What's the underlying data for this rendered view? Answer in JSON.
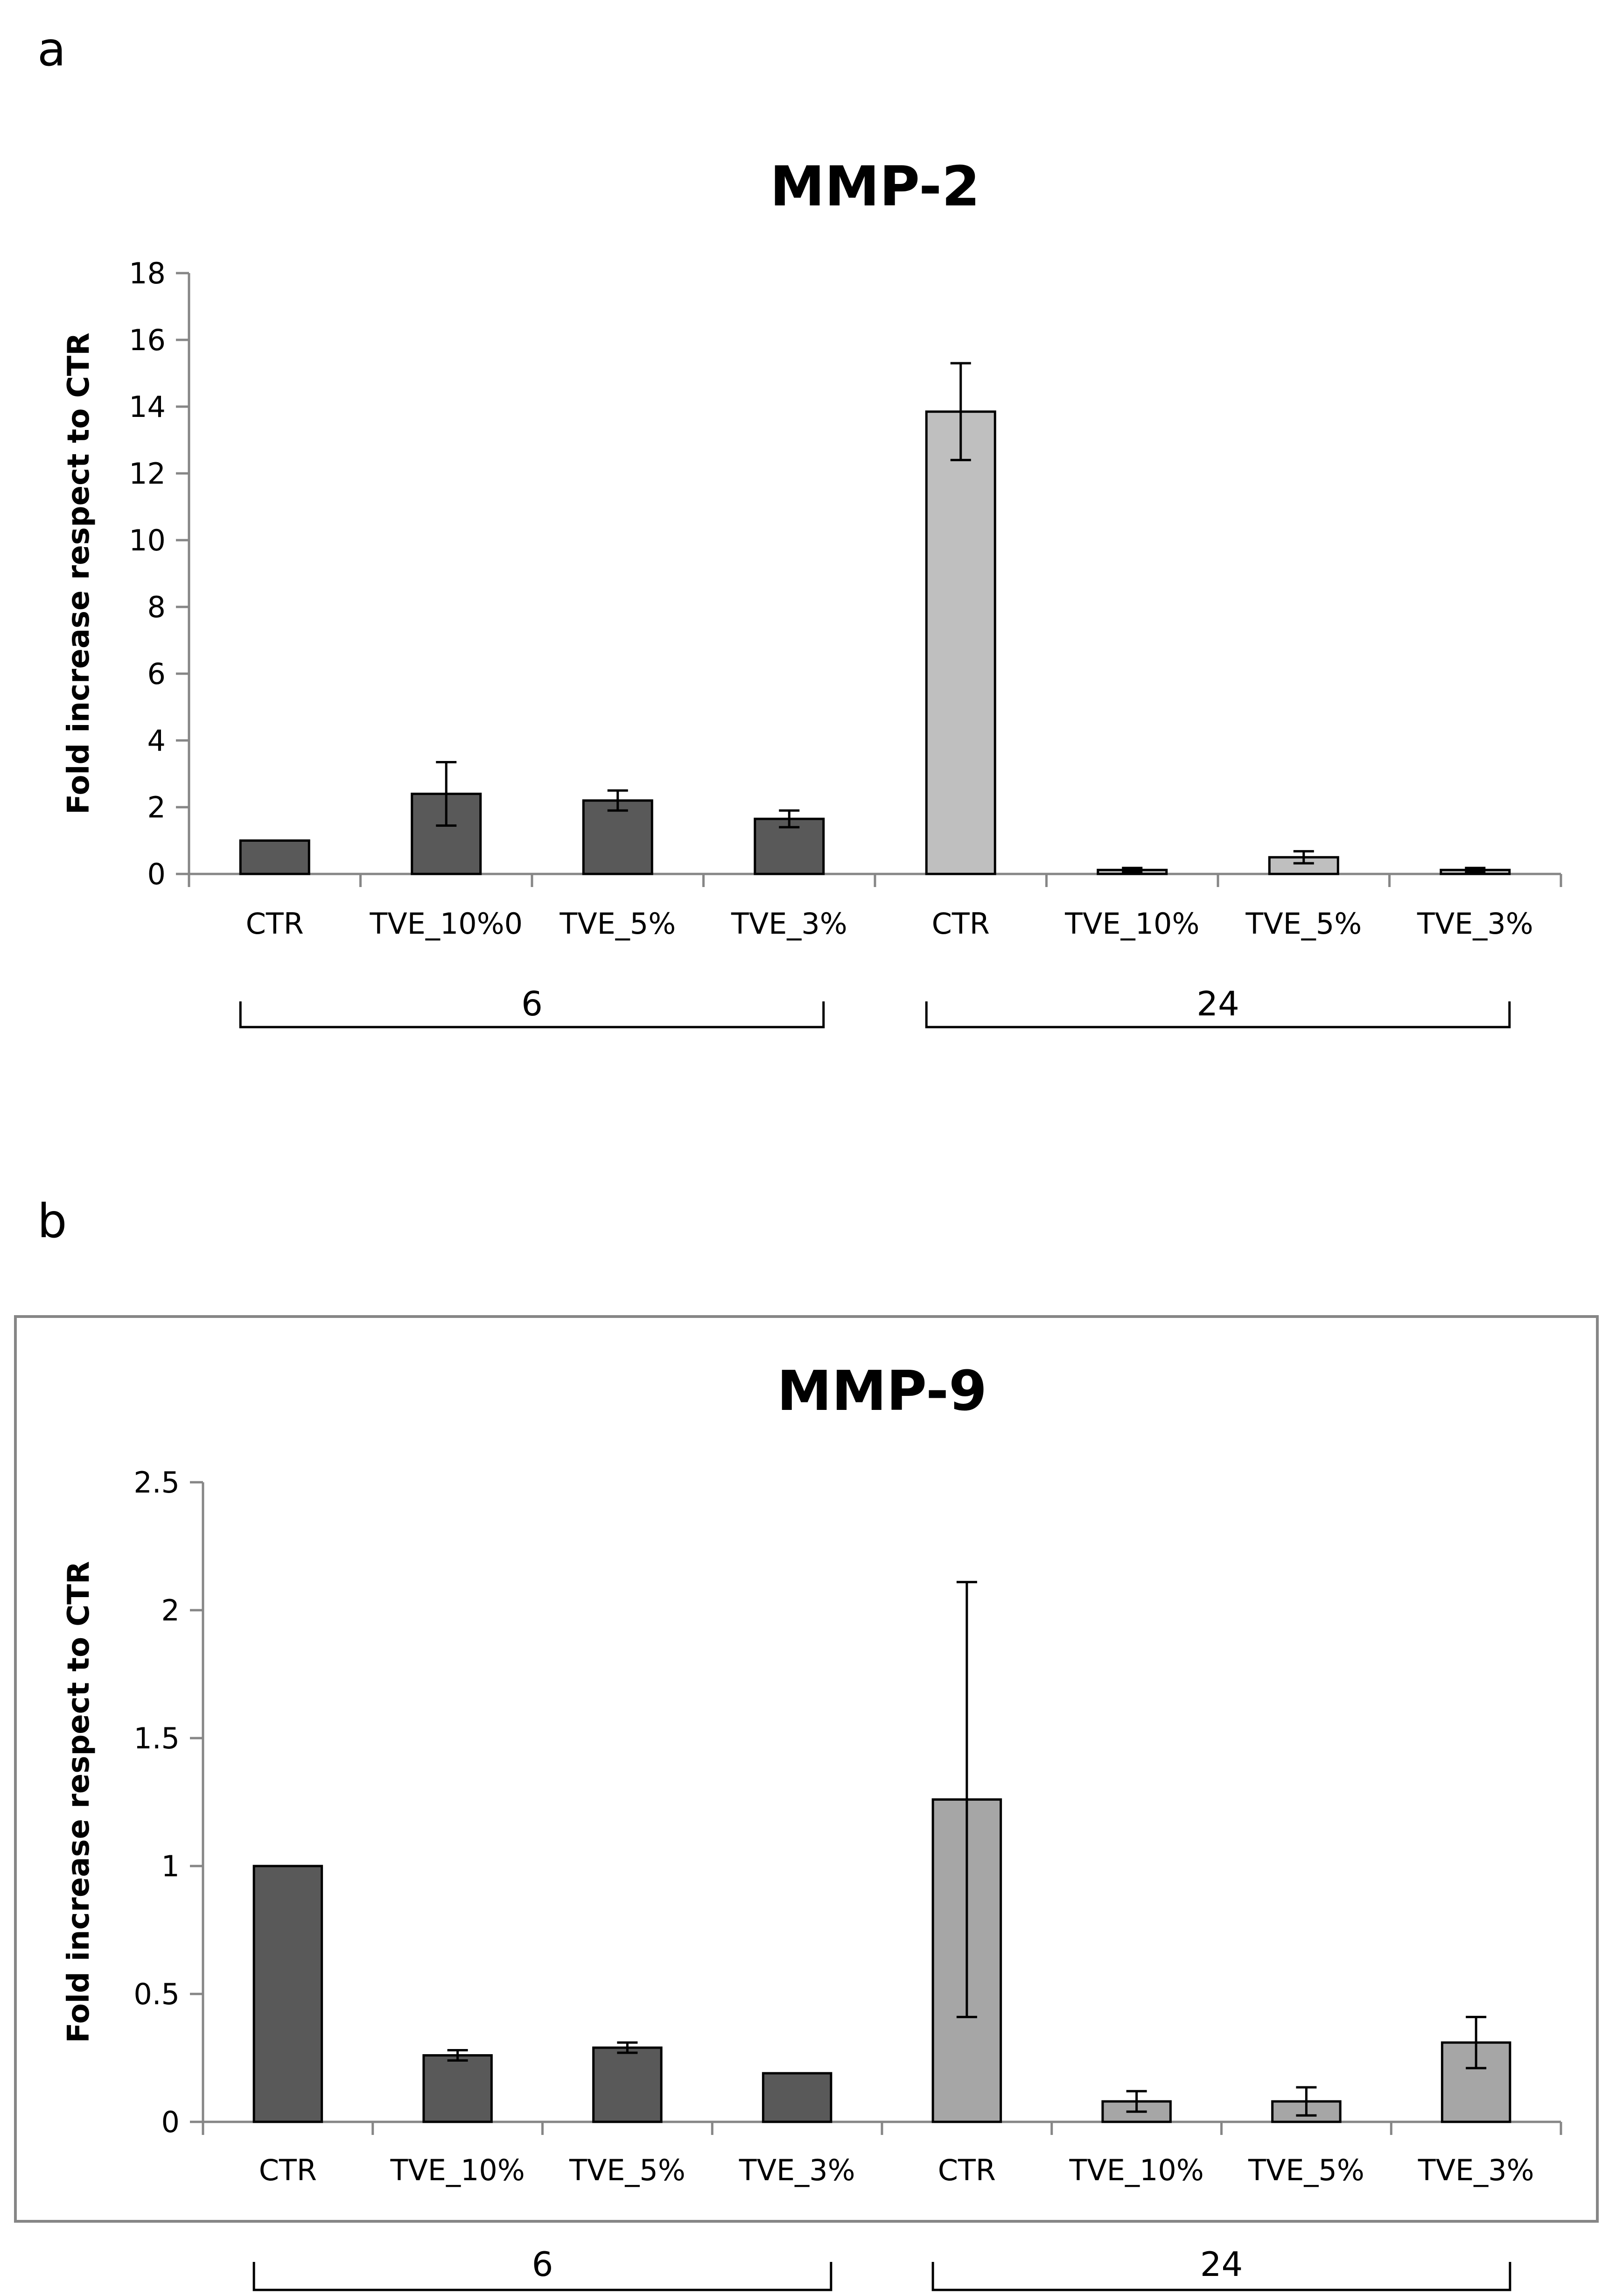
{
  "chart_data": [
    {
      "panel": "a",
      "type": "bar",
      "title": "MMP-2",
      "ylabel": "Fold increase respect to CTR",
      "xlabel": "",
      "ylim": [
        0,
        18
      ],
      "yticks": [
        0,
        2,
        4,
        6,
        8,
        10,
        12,
        14,
        16,
        18
      ],
      "ytick_labels": [
        "0",
        "2",
        "4",
        "6",
        "8",
        "10",
        "12",
        "14",
        "16",
        "18"
      ],
      "grid": false,
      "boxed": false,
      "categories": [
        "CTR",
        "TVE_10%0",
        "TVE_5%",
        "TVE_3%",
        "CTR",
        "TVE_10%",
        "TVE_5%",
        "TVE_3%"
      ],
      "groups": [
        {
          "label": "6",
          "indices": [
            0,
            1,
            2,
            3
          ],
          "color": "#595959"
        },
        {
          "label": "24",
          "indices": [
            4,
            5,
            6,
            7
          ],
          "color": "#BFBFBF"
        }
      ],
      "values": [
        1.0,
        2.4,
        2.2,
        1.65,
        13.85,
        0.12,
        0.5,
        0.12
      ],
      "errors": [
        0,
        0.95,
        0.3,
        0.25,
        1.45,
        0.06,
        0.18,
        0.06
      ]
    },
    {
      "panel": "b",
      "type": "bar",
      "title": "MMP-9",
      "ylabel": "Fold increase respect to CTR",
      "xlabel": "",
      "ylim": [
        0,
        2.5
      ],
      "yticks": [
        0,
        0.5,
        1,
        1.5,
        2,
        2.5
      ],
      "ytick_labels": [
        "0",
        "0.5",
        "1",
        "1.5",
        "2",
        "2.5"
      ],
      "grid": false,
      "boxed": true,
      "categories": [
        "CTR",
        "TVE_10%",
        "TVE_5%",
        "TVE_3%",
        "CTR",
        "TVE_10%",
        "TVE_5%",
        "TVE_3%"
      ],
      "groups": [
        {
          "label": "6",
          "indices": [
            0,
            1,
            2,
            3
          ],
          "color": "#595959"
        },
        {
          "label": "24",
          "indices": [
            4,
            5,
            6,
            7
          ],
          "color": "#A6A6A6"
        }
      ],
      "values": [
        1.0,
        0.26,
        0.29,
        0.19,
        1.26,
        0.08,
        0.08,
        0.31
      ],
      "errors": [
        0,
        0.02,
        0.02,
        0,
        0.85,
        0.04,
        0.055,
        0.1
      ]
    }
  ]
}
